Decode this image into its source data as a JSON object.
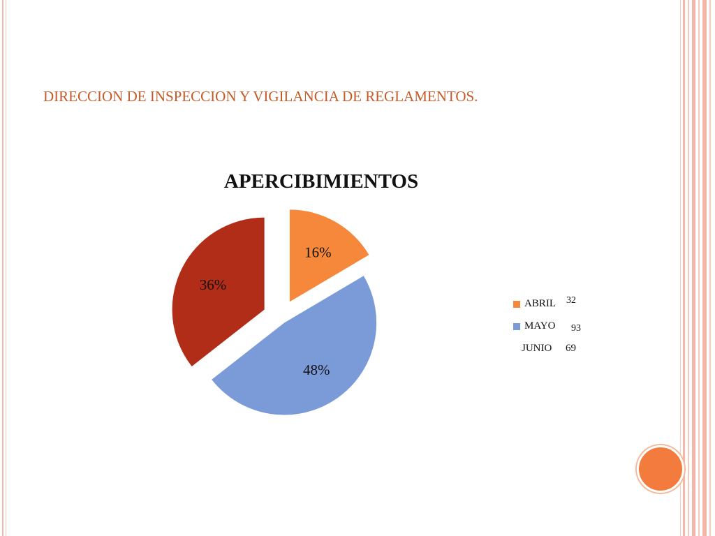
{
  "slide": {
    "title": "DIRECCION DE INSPECCION Y VIGILANCIA DE REGLAMENTOS."
  },
  "colors": {
    "accent": "#c55a27",
    "frame": "#f2b7a8",
    "dot": "#f37b3d"
  },
  "chart_data": {
    "type": "pie",
    "title": "APERCIBIMIENTOS",
    "categories": [
      "ABRIL",
      "MAYO",
      "JUNIO"
    ],
    "values": [
      32,
      93,
      69
    ],
    "value_labels": [
      "32",
      "93",
      "69"
    ],
    "percent_labels": [
      "16%",
      "48%",
      "36%"
    ],
    "colors": [
      "#f6883b",
      "#7b9bd8",
      "#b22d17"
    ],
    "exploded": true,
    "legend_position": "right"
  }
}
